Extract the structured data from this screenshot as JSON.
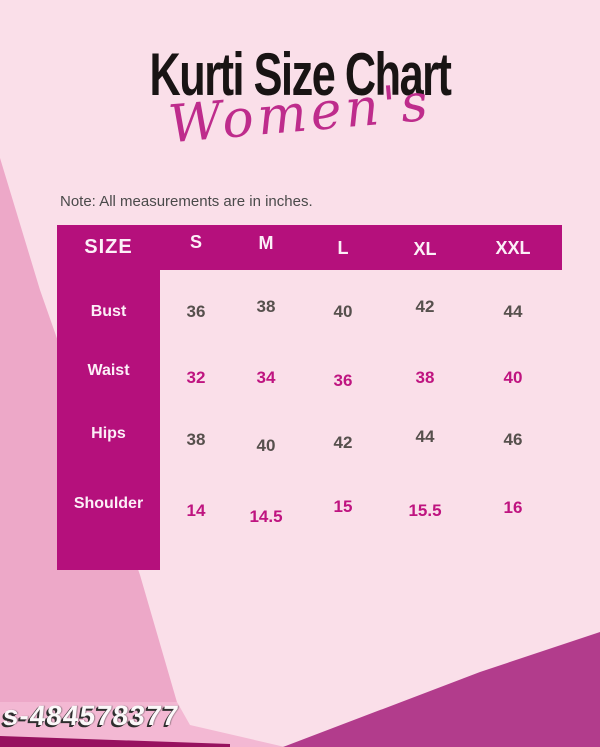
{
  "header": {
    "title": "Kurti Size Chart",
    "subtitle": "Women's"
  },
  "note": {
    "text": "Note: All measurements are in inches."
  },
  "watermark": {
    "text": "s-484578377"
  },
  "colors": {
    "page_background": "#FADFE9",
    "accent_magenta": "#B5107C",
    "left_wedge_pink": "#EDA8C8",
    "watermark_band_pink": "#F3B8D3",
    "bottom_stripe_magenta": "#97125F",
    "corner_triangle_magenta": "#B23C8C",
    "value_dark": "#56504D",
    "value_magenta": "#BF1480",
    "title_text": "#191414",
    "script_text": "#BE2C8C",
    "note_text": "#4A4A4A"
  },
  "chart_data": {
    "type": "table",
    "title": "Kurti Size Chart",
    "subtitle": "Women's",
    "units": "inches",
    "units_note": "All measurements are in inches",
    "columns": [
      "SIZE",
      "S",
      "M",
      "L",
      "XL",
      "XXL"
    ],
    "rows": [
      {
        "label": "Bust",
        "values": [
          "36",
          "38",
          "40",
          "42",
          "44"
        ]
      },
      {
        "label": "Waist",
        "values": [
          "32",
          "34",
          "36",
          "38",
          "40"
        ]
      },
      {
        "label": "Hips",
        "values": [
          "38",
          "40",
          "42",
          "44",
          "46"
        ]
      },
      {
        "label": "Shoulder",
        "values": [
          "14",
          "14.5",
          "15",
          "15.5",
          "16"
        ]
      }
    ]
  }
}
